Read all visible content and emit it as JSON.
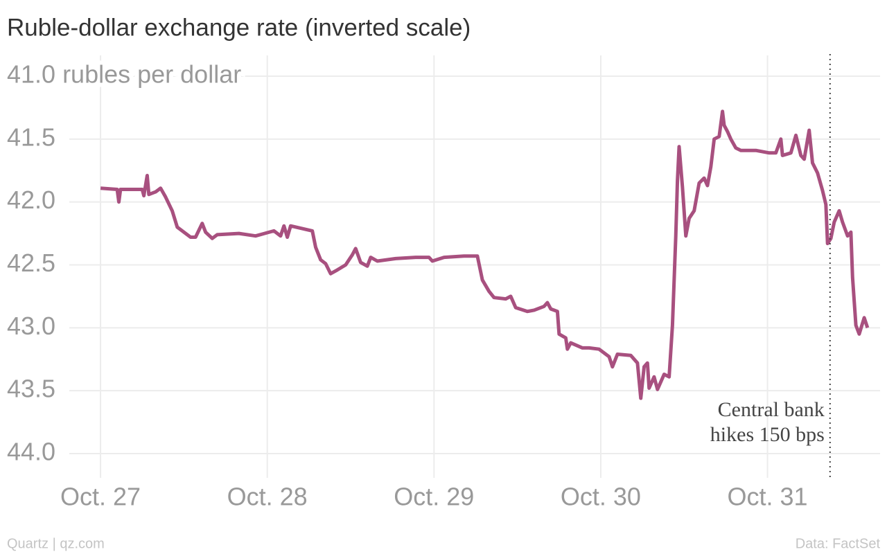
{
  "chart_data": {
    "type": "line",
    "title": "Ruble-dollar exchange rate (inverted scale)",
    "source_left": "Quartz | qz.com",
    "source_right": "Data: FactSet",
    "y_inverted": true,
    "ylim": [
      41.0,
      44.0
    ],
    "yticks": [
      {
        "value": 41.0,
        "label": "41.0 rubles per dollar"
      },
      41.5,
      {
        "value": 42,
        "label": "42.0"
      },
      42.5,
      {
        "value": 43,
        "label": "43.0"
      },
      43.5,
      {
        "value": 44,
        "label": "44.0"
      }
    ],
    "xlim": [
      -0.1,
      4.7
    ],
    "xticks": [
      {
        "value": 0,
        "label": "Oct. 27"
      },
      {
        "value": 1,
        "label": "Oct. 28"
      },
      {
        "value": 2,
        "label": "Oct. 29"
      },
      {
        "value": 3,
        "label": "Oct. 30"
      },
      {
        "value": 4,
        "label": "Oct. 31"
      }
    ],
    "grid": true,
    "color": "#a8507f",
    "annotation": {
      "x": 4.375,
      "text": [
        "Central bank",
        "hikes 150 bps"
      ]
    },
    "x": [
      0,
      0.1,
      0.11,
      0.12,
      0.25,
      0.26,
      0.28,
      0.29,
      0.33,
      0.36,
      0.39,
      0.43,
      0.46,
      0.5,
      0.54,
      0.57,
      0.61,
      0.63,
      0.67,
      0.7,
      0.83,
      0.93,
      1.04,
      1.08,
      1.1,
      1.12,
      1.14,
      1.27,
      1.29,
      1.32,
      1.35,
      1.38,
      1.42,
      1.47,
      1.51,
      1.53,
      1.56,
      1.6,
      1.62,
      1.66,
      1.77,
      1.89,
      1.97,
      1.99,
      2.06,
      2.18,
      2.26,
      2.29,
      2.33,
      2.36,
      2.43,
      2.46,
      2.49,
      2.56,
      2.6,
      2.66,
      2.68,
      2.7,
      2.74,
      2.75,
      2.79,
      2.8,
      2.82,
      2.89,
      2.93,
      2.99,
      3.05,
      3.07,
      3.1,
      3.18,
      3.22,
      3.24,
      3.26,
      3.28,
      3.29,
      3.32,
      3.34,
      3.38,
      3.41,
      3.43,
      3.45,
      3.46,
      3.47,
      3.49,
      3.51,
      3.53,
      3.56,
      3.59,
      3.62,
      3.64,
      3.66,
      3.68,
      3.71,
      3.73,
      3.74,
      3.76,
      3.78,
      3.81,
      3.84,
      3.93,
      4.01,
      4.05,
      4.08,
      4.09,
      4.14,
      4.17,
      4.2,
      4.22,
      4.25,
      4.27,
      4.3,
      4.33,
      4.35,
      4.36,
      4.38,
      4.4,
      4.43,
      4.45,
      4.48,
      4.5,
      4.51,
      4.53,
      4.55,
      4.58,
      4.6
    ],
    "values": [
      41.89,
      41.9,
      42.0,
      41.9,
      41.9,
      41.95,
      41.79,
      41.94,
      41.92,
      41.89,
      41.96,
      42.07,
      42.2,
      42.24,
      42.28,
      42.28,
      42.17,
      42.24,
      42.29,
      42.26,
      42.25,
      42.27,
      42.23,
      42.27,
      42.19,
      42.28,
      42.19,
      42.23,
      42.36,
      42.46,
      42.49,
      42.57,
      42.54,
      42.5,
      42.42,
      42.37,
      42.48,
      42.51,
      42.44,
      42.47,
      42.45,
      42.44,
      42.44,
      42.47,
      42.44,
      42.43,
      42.43,
      42.62,
      42.71,
      42.76,
      42.77,
      42.75,
      42.84,
      42.87,
      42.86,
      42.83,
      42.8,
      42.85,
      42.87,
      43.05,
      43.08,
      43.17,
      43.12,
      43.16,
      43.16,
      43.17,
      43.23,
      43.31,
      43.21,
      43.22,
      43.28,
      43.56,
      43.31,
      43.28,
      43.48,
      43.39,
      43.49,
      43.37,
      43.39,
      42.98,
      42.27,
      41.83,
      41.56,
      41.88,
      42.27,
      42.13,
      42.07,
      41.85,
      41.81,
      41.87,
      41.72,
      41.5,
      41.48,
      41.28,
      41.39,
      41.44,
      41.5,
      41.57,
      41.59,
      41.59,
      41.61,
      41.61,
      41.5,
      41.63,
      41.61,
      41.47,
      41.63,
      41.66,
      41.43,
      41.69,
      41.77,
      41.91,
      42.02,
      42.33,
      42.29,
      42.16,
      42.07,
      42.16,
      42.27,
      42.24,
      42.6,
      42.98,
      43.05,
      42.92,
      43.0
    ]
  }
}
